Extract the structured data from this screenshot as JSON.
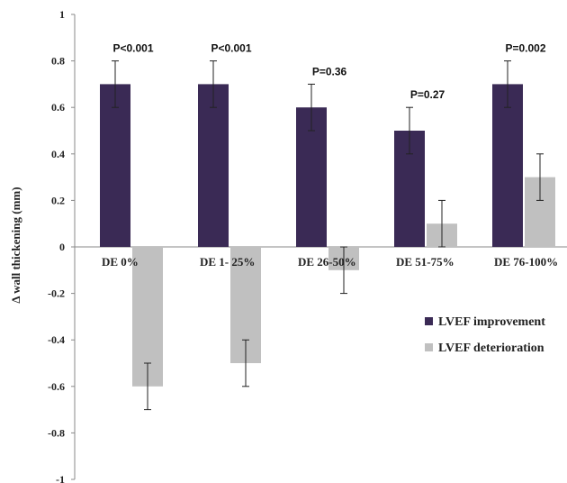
{
  "chart_data": {
    "type": "bar",
    "title": "",
    "xlabel": "",
    "ylabel": "Δ wall thickening (mm)",
    "ylim": [
      -1,
      1
    ],
    "yticks": [
      1,
      0.8,
      0.6,
      0.4,
      0.2,
      0,
      -0.2,
      -0.4,
      -0.6,
      -0.8,
      -1
    ],
    "ytick_labels": [
      "1",
      "0.8",
      "0.6",
      "0.4",
      "0.2",
      "0",
      "-0.2",
      "-0.4",
      "-0.6",
      "-0.8",
      "-1"
    ],
    "categories": [
      "DE 0%",
      "DE 1- 25%",
      "DE 26-50%",
      "DE 51-75%",
      "DE 76-100%"
    ],
    "series": [
      {
        "name": "LVEF improvement",
        "color": "#3a2a55",
        "values": [
          0.7,
          0.7,
          0.6,
          0.5,
          0.7
        ],
        "errors": [
          0.1,
          0.1,
          0.1,
          0.1,
          0.1
        ]
      },
      {
        "name": "LVEF deterioration",
        "color": "#c0c0c0",
        "values": [
          -0.6,
          -0.5,
          -0.1,
          0.1,
          0.3
        ],
        "errors": [
          0.1,
          0.1,
          0.1,
          0.1,
          0.1
        ]
      }
    ],
    "annotations": [
      "P<0.001",
      "P<0.001",
      "P=0.36",
      "P=0.27",
      "P=0.002"
    ],
    "grid": false,
    "legend_position": "right"
  }
}
